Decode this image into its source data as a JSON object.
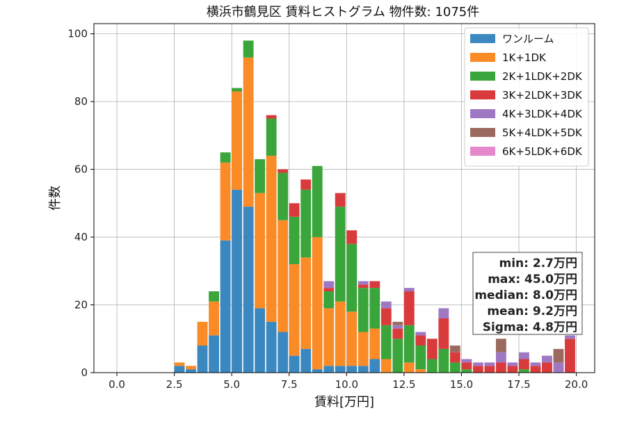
{
  "chart_data": {
    "type": "bar",
    "stacked": true,
    "title": "横浜市鶴見区 賃料ヒストグラム 物件数: 1075件",
    "xlabel": "賃料[万円]",
    "ylabel": "件数",
    "xlim": [
      -1.0,
      20.8
    ],
    "ylim": [
      0,
      103
    ],
    "grid": true,
    "legend_position": "top-right",
    "bin_width": 0.5,
    "x_ticks": [
      0.0,
      2.5,
      5.0,
      7.5,
      10.0,
      12.5,
      15.0,
      17.5,
      20.0
    ],
    "x_tick_labels": [
      "0.0",
      "2.5",
      "5.0",
      "7.5",
      "10.0",
      "12.5",
      "15.0",
      "17.5",
      "20.0"
    ],
    "y_ticks": [
      0,
      20,
      40,
      60,
      80,
      100
    ],
    "y_tick_labels": [
      "0",
      "20",
      "40",
      "60",
      "80",
      "100"
    ],
    "x": [
      2.5,
      3.0,
      3.5,
      4.0,
      4.5,
      5.0,
      5.5,
      6.0,
      6.5,
      7.0,
      7.5,
      8.0,
      8.5,
      9.0,
      9.5,
      10.0,
      10.5,
      11.0,
      11.5,
      12.0,
      12.5,
      13.0,
      13.5,
      14.0,
      14.5,
      15.0,
      15.5,
      16.0,
      16.5,
      17.0,
      17.5,
      18.0,
      18.5,
      19.0,
      19.5
    ],
    "series": [
      {
        "name": "ワンルーム",
        "color": "#3b87c0",
        "values": [
          2,
          1,
          8,
          11,
          39,
          54,
          49,
          19,
          15,
          12,
          5,
          7,
          1,
          2,
          2,
          2,
          2,
          4,
          0,
          0,
          0,
          0,
          0,
          0,
          0,
          0,
          0,
          0,
          0,
          0,
          0,
          0,
          0,
          0,
          0
        ]
      },
      {
        "name": "1K+1DK",
        "color": "#fa8b27",
        "values": [
          1,
          1,
          7,
          10,
          23,
          29,
          44,
          34,
          49,
          33,
          27,
          27,
          39,
          17,
          19,
          16,
          10,
          9,
          4,
          0,
          3,
          1,
          0,
          0,
          0,
          0,
          0,
          0,
          0,
          0,
          0,
          0,
          0,
          0,
          0
        ]
      },
      {
        "name": "2K+1LDK+2DK",
        "color": "#3aa53a",
        "values": [
          0,
          0,
          0,
          3,
          3,
          1,
          5,
          10,
          11,
          14,
          14,
          20,
          21,
          5,
          28,
          20,
          13,
          12,
          10,
          10,
          11,
          7,
          4,
          7,
          3,
          1,
          0,
          0,
          0,
          0,
          1,
          0,
          0,
          0,
          0
        ]
      },
      {
        "name": "3K+2LDK+3DK",
        "color": "#d93a3b",
        "values": [
          0,
          0,
          0,
          0,
          0,
          0,
          0,
          0,
          1,
          1,
          4,
          3,
          0,
          1,
          4,
          4,
          1,
          2,
          5,
          3,
          10,
          3,
          6,
          9,
          3,
          2,
          2,
          2,
          3,
          2,
          3,
          2,
          3,
          0,
          10
        ]
      },
      {
        "name": "4K+3LDK+4DK",
        "color": "#9f78c4",
        "values": [
          0,
          0,
          0,
          0,
          0,
          0,
          0,
          0,
          0,
          0,
          0,
          0,
          0,
          2,
          0,
          0,
          1,
          0,
          2,
          1,
          1,
          1,
          0,
          3,
          0,
          1,
          1,
          1,
          3,
          1,
          2,
          1,
          2,
          3,
          1
        ]
      },
      {
        "name": "5K+4LDK+5DK",
        "color": "#9b6a5e",
        "values": [
          0,
          0,
          0,
          0,
          0,
          0,
          0,
          0,
          0,
          0,
          0,
          0,
          0,
          0,
          0,
          0,
          0,
          0,
          0,
          1,
          0,
          0,
          0,
          0,
          2,
          0,
          0,
          0,
          4,
          0,
          0,
          0,
          0,
          4,
          0
        ]
      },
      {
        "name": "6K+5LDK+6DK",
        "color": "#e588cb",
        "values": [
          0,
          0,
          0,
          0,
          0,
          0,
          0,
          0,
          0,
          0,
          0,
          0,
          0,
          0,
          0,
          0,
          0,
          0,
          0,
          0,
          0,
          0,
          0,
          0,
          0,
          0,
          0,
          0,
          0,
          0,
          0,
          0,
          0,
          0,
          0
        ]
      }
    ],
    "annotations": [
      "min: 2.7万円",
      "max: 45.0万円",
      "median: 8.0万円",
      "mean: 9.2万円",
      "Sigma: 4.8万円"
    ]
  }
}
